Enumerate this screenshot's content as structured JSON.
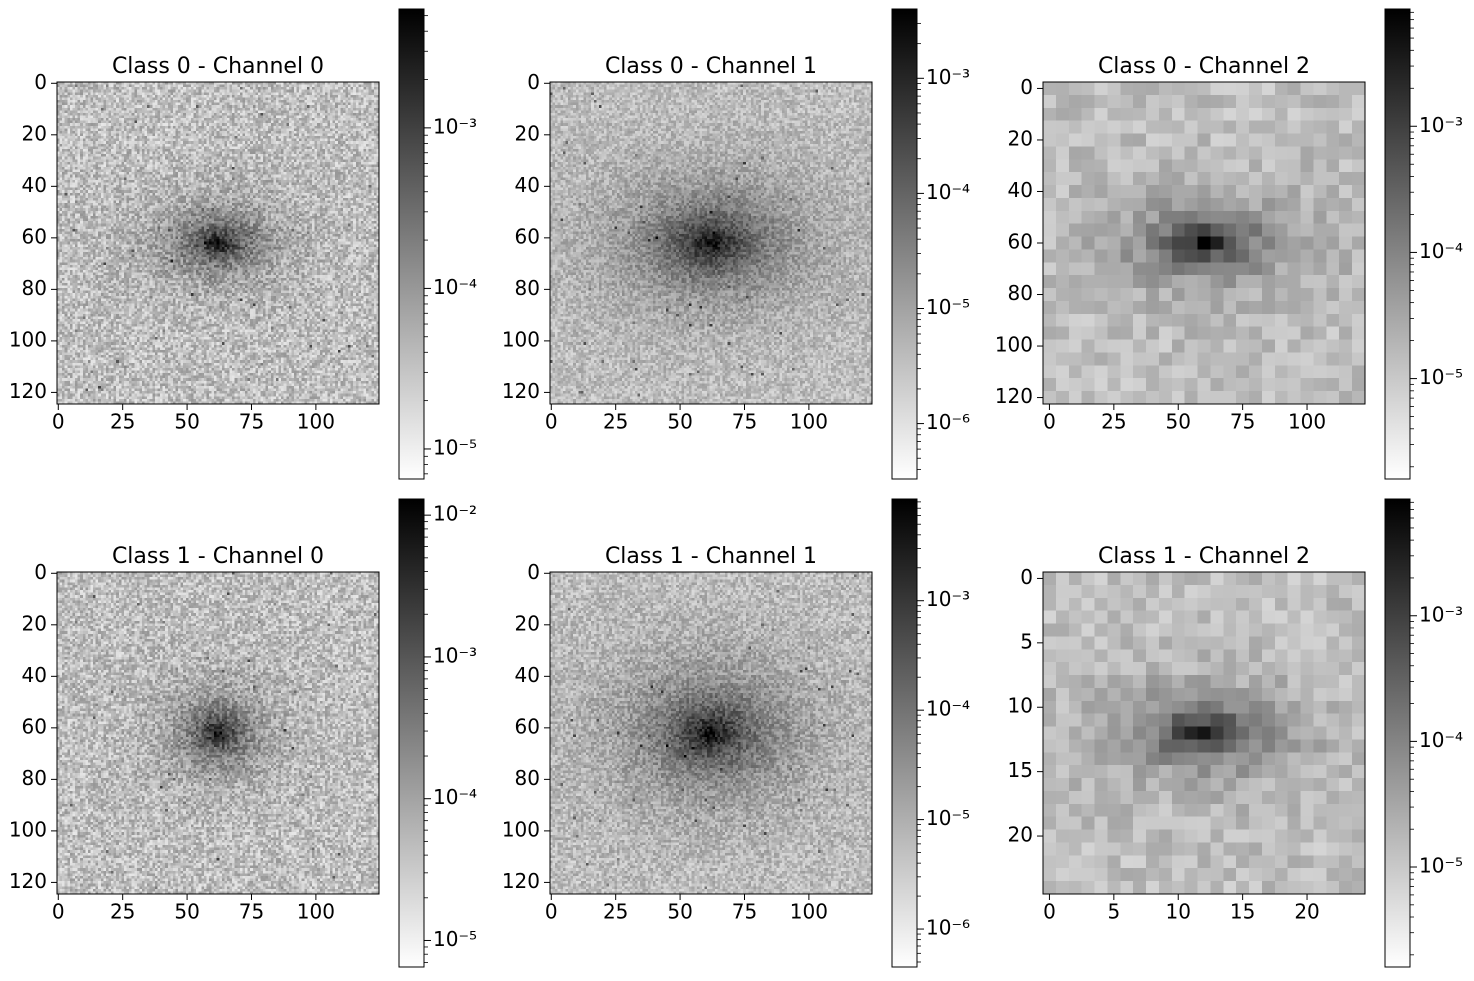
{
  "figure": {
    "colormap": "gray_r",
    "colors": {
      "low": "#ffffff",
      "high": "#000000",
      "axis": "#000000"
    }
  },
  "chart_data": [
    {
      "type": "heatmap",
      "title": "Class 0 - Channel 0",
      "image_size": 125,
      "peak": [
        62,
        62
      ],
      "blob_sigma": [
        11,
        7
      ],
      "noise": 0.16,
      "xticks": [
        0,
        25,
        50,
        75,
        100
      ],
      "yticks": [
        0,
        20,
        40,
        60,
        80,
        100,
        120
      ],
      "colorbar": {
        "scale": "log",
        "vmin": 6.5e-06,
        "vmax": 0.0055,
        "ticks": [
          {
            "value": 1e-05,
            "label": "10⁻⁵"
          },
          {
            "value": 0.0001,
            "label": "10⁻⁴"
          },
          {
            "value": 0.001,
            "label": "10⁻³"
          }
        ]
      }
    },
    {
      "type": "heatmap",
      "title": "Class 0 - Channel 1",
      "image_size": 125,
      "peak": [
        62,
        62
      ],
      "blob_sigma": [
        18,
        12
      ],
      "noise": 0.12,
      "xticks": [
        0,
        25,
        50,
        75,
        100
      ],
      "yticks": [
        0,
        20,
        40,
        60,
        80,
        100,
        120
      ],
      "colorbar": {
        "scale": "log",
        "vmin": 3.3e-07,
        "vmax": 0.004,
        "ticks": [
          {
            "value": 1e-06,
            "label": "10⁻⁶"
          },
          {
            "value": 1e-05,
            "label": "10⁻⁵"
          },
          {
            "value": 0.0001,
            "label": "10⁻⁴"
          },
          {
            "value": 0.001,
            "label": "10⁻³"
          }
        ]
      }
    },
    {
      "type": "heatmap",
      "title": "Class 0 - Channel 2",
      "image_size": 25,
      "pixel_scale": 5,
      "peak": [
        12,
        12
      ],
      "blob_sigma": [
        3.2,
        1.6
      ],
      "noise": 0.09,
      "xticks": [
        0,
        25,
        50,
        75,
        100
      ],
      "yticks": [
        0,
        20,
        40,
        60,
        80,
        100,
        120
      ],
      "colorbar": {
        "scale": "log",
        "vmin": 1.6e-06,
        "vmax": 0.0085,
        "ticks": [
          {
            "value": 1e-05,
            "label": "10⁻⁵"
          },
          {
            "value": 0.0001,
            "label": "10⁻⁴"
          },
          {
            "value": 0.001,
            "label": "10⁻³"
          }
        ]
      }
    },
    {
      "type": "heatmap",
      "title": "Class 1 - Channel 0",
      "image_size": 125,
      "peak": [
        62,
        62
      ],
      "blob_sigma": [
        9,
        8
      ],
      "noise": 0.16,
      "xticks": [
        0,
        25,
        50,
        75,
        100
      ],
      "yticks": [
        0,
        20,
        40,
        60,
        80,
        100,
        120
      ],
      "colorbar": {
        "scale": "log",
        "vmin": 6.5e-06,
        "vmax": 0.013,
        "ticks": [
          {
            "value": 1e-05,
            "label": "10⁻⁵"
          },
          {
            "value": 0.0001,
            "label": "10⁻⁴"
          },
          {
            "value": 0.001,
            "label": "10⁻³"
          },
          {
            "value": 0.01,
            "label": "10⁻²"
          }
        ]
      }
    },
    {
      "type": "heatmap",
      "title": "Class 1 - Channel 1",
      "image_size": 125,
      "peak": [
        62,
        62
      ],
      "blob_sigma": [
        17,
        13
      ],
      "noise": 0.13,
      "xticks": [
        0,
        25,
        50,
        75,
        100
      ],
      "yticks": [
        0,
        20,
        40,
        60,
        80,
        100,
        120
      ],
      "colorbar": {
        "scale": "log",
        "vmin": 4.5e-07,
        "vmax": 0.0085,
        "ticks": [
          {
            "value": 1e-06,
            "label": "10⁻⁶"
          },
          {
            "value": 1e-05,
            "label": "10⁻⁵"
          },
          {
            "value": 0.0001,
            "label": "10⁻⁴"
          },
          {
            "value": 0.001,
            "label": "10⁻³"
          }
        ]
      }
    },
    {
      "type": "heatmap",
      "title": "Class 1 - Channel 2",
      "image_size": 25,
      "peak": [
        12,
        12
      ],
      "blob_sigma": [
        3.2,
        1.6
      ],
      "noise": 0.09,
      "xticks": [
        0,
        5,
        10,
        15,
        20
      ],
      "yticks": [
        0,
        5,
        10,
        15,
        20
      ],
      "colorbar": {
        "scale": "log",
        "vmin": 1.6e-06,
        "vmax": 0.0085,
        "ticks": [
          {
            "value": 1e-05,
            "label": "10⁻⁵"
          },
          {
            "value": 0.0001,
            "label": "10⁻⁴"
          },
          {
            "value": 0.001,
            "label": "10⁻³"
          }
        ]
      }
    }
  ]
}
